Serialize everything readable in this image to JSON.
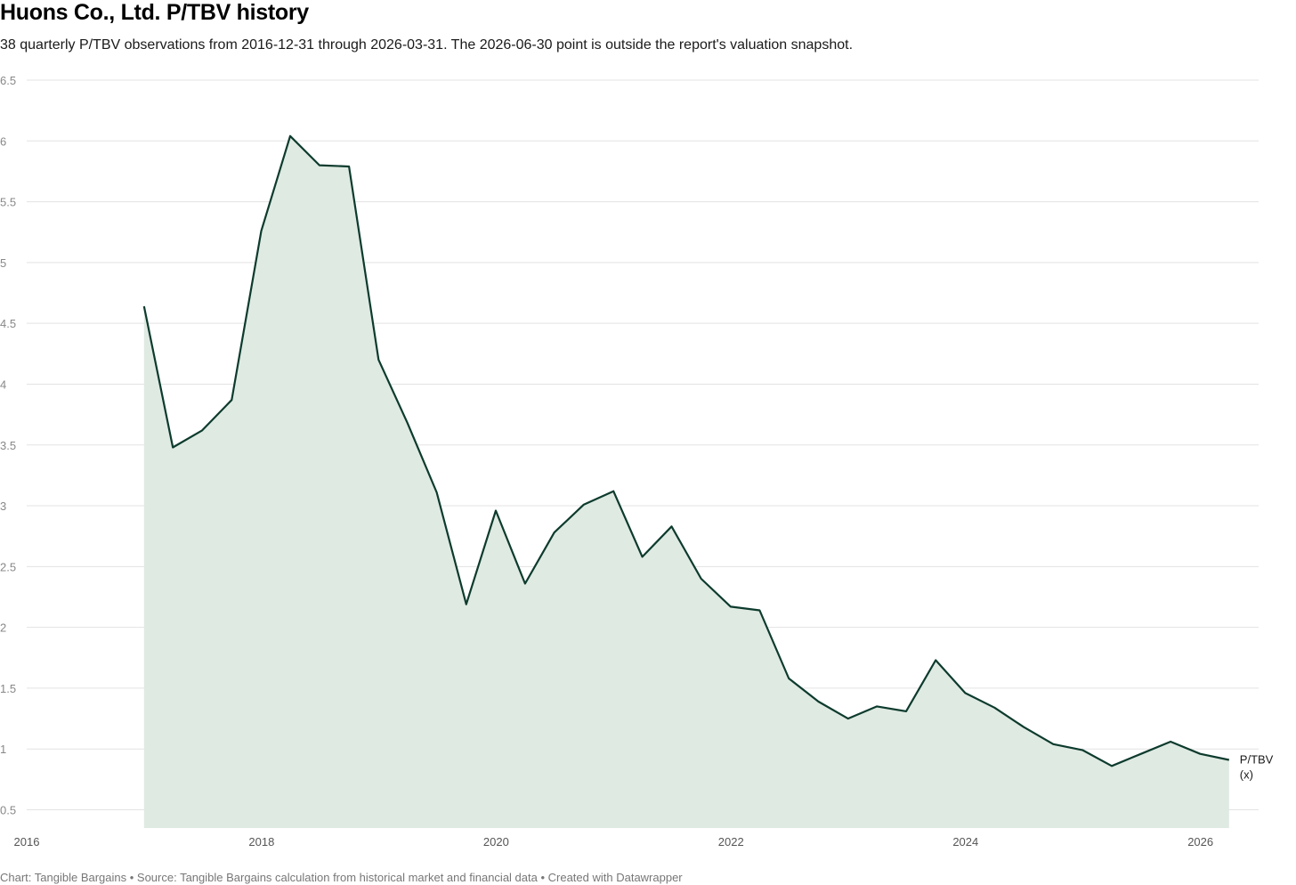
{
  "title": "Huons Co., Ltd. P/TBV history",
  "subtitle": "38 quarterly P/TBV observations from 2016-12-31 through 2026-03-31. The 2026-06-30 point is outside the report's valuation snapshot.",
  "footer": "Chart: Tangible Bargains • Source: Tangible Bargains calculation from historical market and financial data • Created with Datawrapper",
  "colors": {
    "line": "#0d3b2e",
    "area": "#dfeae2",
    "grid": "#e3e3e3"
  },
  "chart_data": {
    "type": "area",
    "title": "Huons Co., Ltd. P/TBV history",
    "xlabel": "",
    "ylabel": "",
    "ylim": [
      0.35,
      6.5
    ],
    "xlim": [
      "2016-01-01",
      "2026-07-01"
    ],
    "grid": true,
    "y_ticks": [
      "0.5",
      "1",
      "1.5",
      "2",
      "2.5",
      "3",
      "3.5",
      "4",
      "4.5",
      "5",
      "5.5",
      "6",
      "6.5"
    ],
    "x_ticks": [
      "2016",
      "2018",
      "2020",
      "2022",
      "2024",
      "2026"
    ],
    "series": [
      {
        "name": "P/TBV\n(x)",
        "label_lines": [
          "P/TBV",
          "(x)"
        ],
        "x": [
          "2016-12-31",
          "2017-03-31",
          "2017-06-30",
          "2017-09-30",
          "2017-12-31",
          "2018-03-31",
          "2018-06-30",
          "2018-09-30",
          "2018-12-31",
          "2019-03-31",
          "2019-06-30",
          "2019-09-30",
          "2019-12-31",
          "2020-03-31",
          "2020-06-30",
          "2020-09-30",
          "2020-12-31",
          "2021-03-31",
          "2021-06-30",
          "2021-09-30",
          "2021-12-31",
          "2022-03-31",
          "2022-06-30",
          "2022-09-30",
          "2022-12-31",
          "2023-03-31",
          "2023-06-30",
          "2023-09-30",
          "2023-12-31",
          "2024-03-31",
          "2024-06-30",
          "2024-09-30",
          "2024-12-31",
          "2025-03-31",
          "2025-06-30",
          "2025-09-30",
          "2025-12-31",
          "2026-03-31"
        ],
        "y": [
          4.64,
          3.48,
          3.62,
          3.87,
          5.26,
          6.04,
          5.8,
          5.79,
          4.2,
          3.68,
          3.11,
          2.19,
          2.96,
          2.36,
          2.78,
          3.01,
          3.12,
          2.58,
          2.83,
          2.4,
          2.17,
          2.14,
          1.58,
          1.39,
          1.25,
          1.35,
          1.31,
          1.73,
          1.46,
          1.34,
          1.18,
          1.04,
          0.99,
          0.86,
          0.96,
          1.06,
          0.96,
          0.91
        ]
      }
    ]
  }
}
